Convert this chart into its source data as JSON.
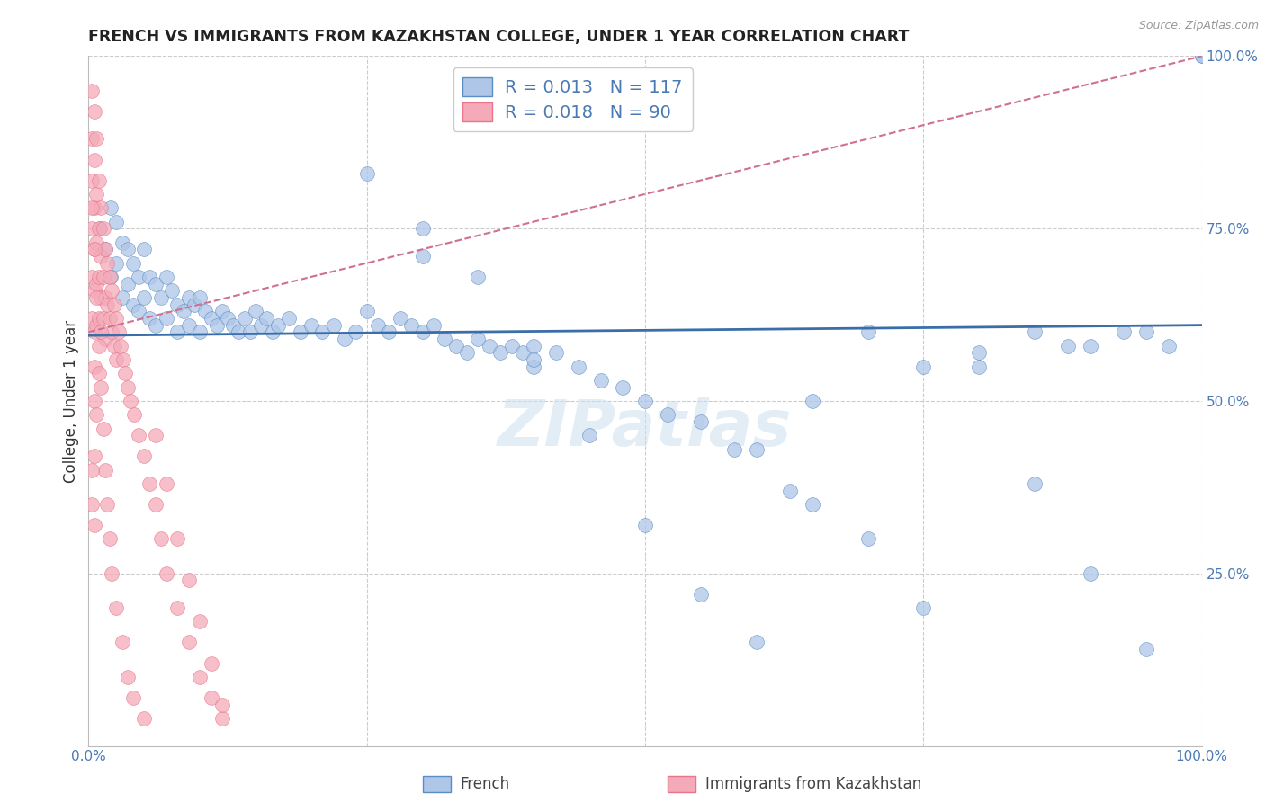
{
  "title": "FRENCH VS IMMIGRANTS FROM KAZAKHSTAN COLLEGE, UNDER 1 YEAR CORRELATION CHART",
  "source": "Source: ZipAtlas.com",
  "ylabel": "College, Under 1 year",
  "blue_R": "0.013",
  "blue_N": "117",
  "pink_R": "0.018",
  "pink_N": "90",
  "blue_color": "#aec6e8",
  "pink_color": "#f4aab9",
  "blue_edge_color": "#5b8ec4",
  "pink_edge_color": "#e8758a",
  "blue_line_color": "#3a6ea8",
  "pink_line_color": "#d07090",
  "watermark": "ZIPatlas",
  "legend_blue_label": "French",
  "legend_pink_label": "Immigrants from Kazakhstan",
  "blue_scatter_x": [
    0.01,
    0.015,
    0.02,
    0.02,
    0.025,
    0.025,
    0.03,
    0.03,
    0.035,
    0.035,
    0.04,
    0.04,
    0.045,
    0.045,
    0.05,
    0.05,
    0.055,
    0.055,
    0.06,
    0.06,
    0.065,
    0.07,
    0.07,
    0.075,
    0.08,
    0.08,
    0.085,
    0.09,
    0.09,
    0.095,
    0.1,
    0.1,
    0.105,
    0.11,
    0.115,
    0.12,
    0.125,
    0.13,
    0.135,
    0.14,
    0.145,
    0.15,
    0.155,
    0.16,
    0.165,
    0.17,
    0.18,
    0.19,
    0.2,
    0.21,
    0.22,
    0.23,
    0.24,
    0.25,
    0.26,
    0.27,
    0.28,
    0.29,
    0.3,
    0.31,
    0.32,
    0.33,
    0.34,
    0.35,
    0.36,
    0.37,
    0.38,
    0.39,
    0.4,
    0.42,
    0.44,
    0.46,
    0.48,
    0.5,
    0.52,
    0.55,
    0.58,
    0.6,
    0.63,
    0.65,
    0.7,
    0.75,
    0.8,
    0.85,
    0.88,
    0.9,
    0.93,
    0.95,
    0.97,
    1.0,
    0.25,
    0.3,
    0.35,
    0.4,
    0.45,
    0.5,
    0.55,
    0.6,
    0.65,
    0.7,
    0.75,
    0.8,
    0.85,
    0.9,
    0.95,
    1.0,
    0.3,
    0.4
  ],
  "blue_scatter_y": [
    0.75,
    0.72,
    0.78,
    0.68,
    0.76,
    0.7,
    0.73,
    0.65,
    0.72,
    0.67,
    0.7,
    0.64,
    0.68,
    0.63,
    0.72,
    0.65,
    0.68,
    0.62,
    0.67,
    0.61,
    0.65,
    0.68,
    0.62,
    0.66,
    0.64,
    0.6,
    0.63,
    0.65,
    0.61,
    0.64,
    0.65,
    0.6,
    0.63,
    0.62,
    0.61,
    0.63,
    0.62,
    0.61,
    0.6,
    0.62,
    0.6,
    0.63,
    0.61,
    0.62,
    0.6,
    0.61,
    0.62,
    0.6,
    0.61,
    0.6,
    0.61,
    0.59,
    0.6,
    0.63,
    0.61,
    0.6,
    0.62,
    0.61,
    0.6,
    0.61,
    0.59,
    0.58,
    0.57,
    0.59,
    0.58,
    0.57,
    0.58,
    0.57,
    0.55,
    0.57,
    0.55,
    0.53,
    0.52,
    0.5,
    0.48,
    0.47,
    0.43,
    0.43,
    0.37,
    0.35,
    0.3,
    0.2,
    0.55,
    0.6,
    0.58,
    0.58,
    0.6,
    0.6,
    0.58,
    1.0,
    0.83,
    0.75,
    0.68,
    0.58,
    0.45,
    0.32,
    0.22,
    0.15,
    0.5,
    0.6,
    0.55,
    0.57,
    0.38,
    0.25,
    0.14,
    1.0,
    0.71,
    0.56
  ],
  "pink_scatter_x": [
    0.003,
    0.003,
    0.003,
    0.003,
    0.003,
    0.003,
    0.005,
    0.005,
    0.005,
    0.005,
    0.005,
    0.005,
    0.005,
    0.005,
    0.007,
    0.007,
    0.007,
    0.007,
    0.007,
    0.009,
    0.009,
    0.009,
    0.009,
    0.011,
    0.011,
    0.011,
    0.013,
    0.013,
    0.013,
    0.015,
    0.015,
    0.015,
    0.017,
    0.017,
    0.019,
    0.019,
    0.021,
    0.021,
    0.023,
    0.023,
    0.025,
    0.025,
    0.027,
    0.029,
    0.031,
    0.033,
    0.035,
    0.038,
    0.041,
    0.045,
    0.05,
    0.055,
    0.06,
    0.065,
    0.07,
    0.08,
    0.09,
    0.1,
    0.11,
    0.12,
    0.003,
    0.005,
    0.007,
    0.009,
    0.011,
    0.013,
    0.015,
    0.017,
    0.019,
    0.021,
    0.025,
    0.03,
    0.035,
    0.04,
    0.05,
    0.06,
    0.07,
    0.08,
    0.09,
    0.1,
    0.11,
    0.12,
    0.003,
    0.005,
    0.007,
    0.009,
    0.011,
    0.003,
    0.005
  ],
  "pink_scatter_y": [
    0.95,
    0.88,
    0.82,
    0.75,
    0.68,
    0.62,
    0.92,
    0.85,
    0.78,
    0.72,
    0.66,
    0.6,
    0.55,
    0.5,
    0.88,
    0.8,
    0.73,
    0.67,
    0.61,
    0.82,
    0.75,
    0.68,
    0.62,
    0.78,
    0.71,
    0.65,
    0.75,
    0.68,
    0.62,
    0.72,
    0.65,
    0.59,
    0.7,
    0.64,
    0.68,
    0.62,
    0.66,
    0.6,
    0.64,
    0.58,
    0.62,
    0.56,
    0.6,
    0.58,
    0.56,
    0.54,
    0.52,
    0.5,
    0.48,
    0.45,
    0.42,
    0.38,
    0.35,
    0.3,
    0.25,
    0.2,
    0.15,
    0.1,
    0.07,
    0.04,
    0.78,
    0.72,
    0.65,
    0.58,
    0.52,
    0.46,
    0.4,
    0.35,
    0.3,
    0.25,
    0.2,
    0.15,
    0.1,
    0.07,
    0.04,
    0.45,
    0.38,
    0.3,
    0.24,
    0.18,
    0.12,
    0.06,
    0.4,
    0.42,
    0.48,
    0.54,
    0.6,
    0.35,
    0.32
  ]
}
